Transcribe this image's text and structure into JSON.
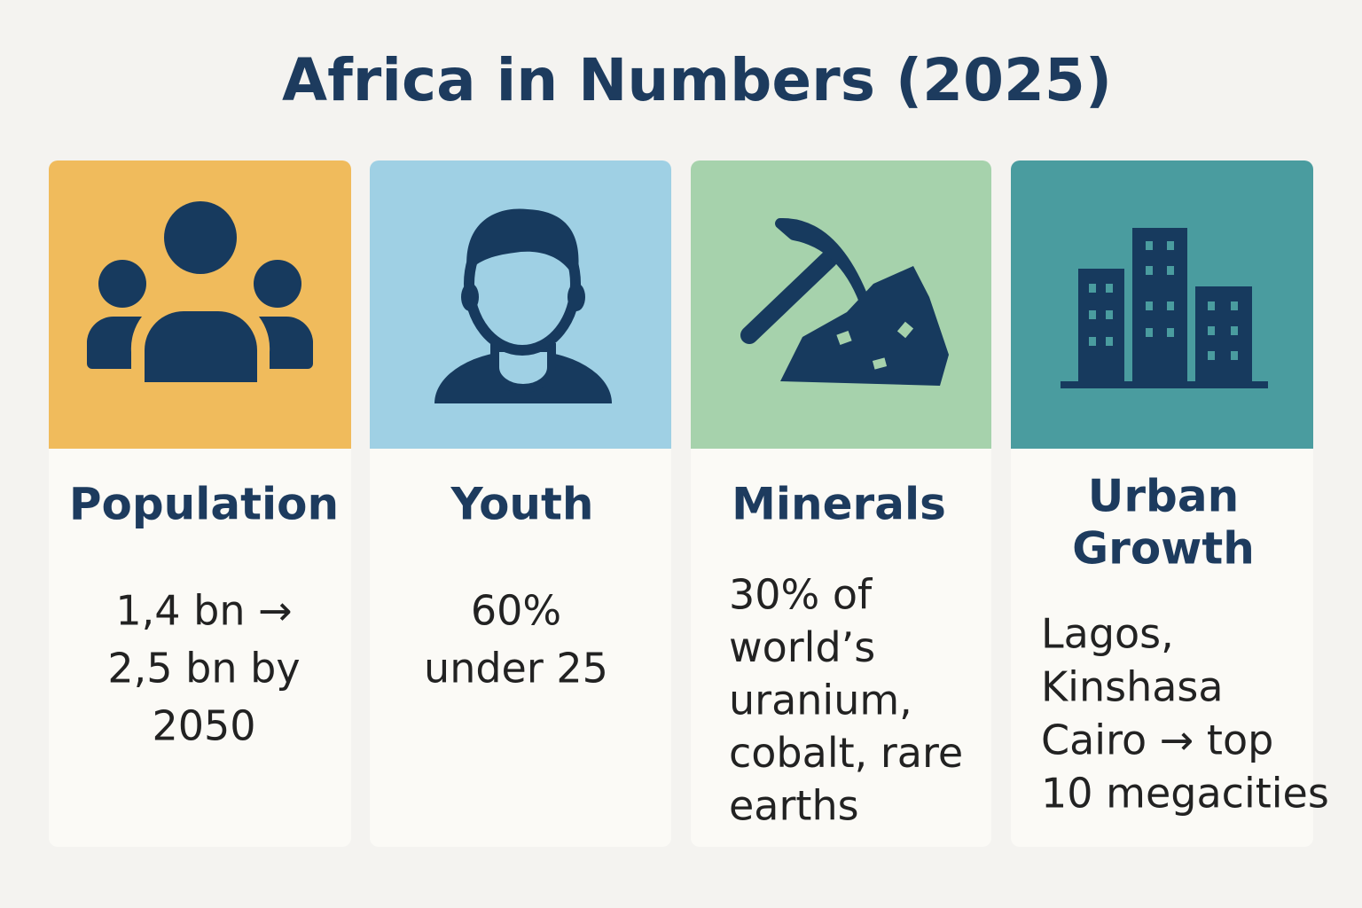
{
  "header": {
    "title": "Africa in Numbers (2025)"
  },
  "cards": [
    {
      "title": [
        "Population"
      ],
      "text": [
        "1,4 bn →",
        "2,5 bn by",
        "2050"
      ]
    },
    {
      "title": [
        "Youth"
      ],
      "text": [
        "60%",
        "under  25"
      ]
    },
    {
      "title": [
        "Minerals"
      ],
      "text": [
        "30% of",
        "world’s",
        "uranium,",
        "cobalt, rare",
        "earths"
      ]
    },
    {
      "title": [
        "Urban",
        "Growth"
      ],
      "text": [
        "Lagos,",
        "Kinshasa",
        "Cairo → top",
        "10 megacities"
      ]
    }
  ]
}
